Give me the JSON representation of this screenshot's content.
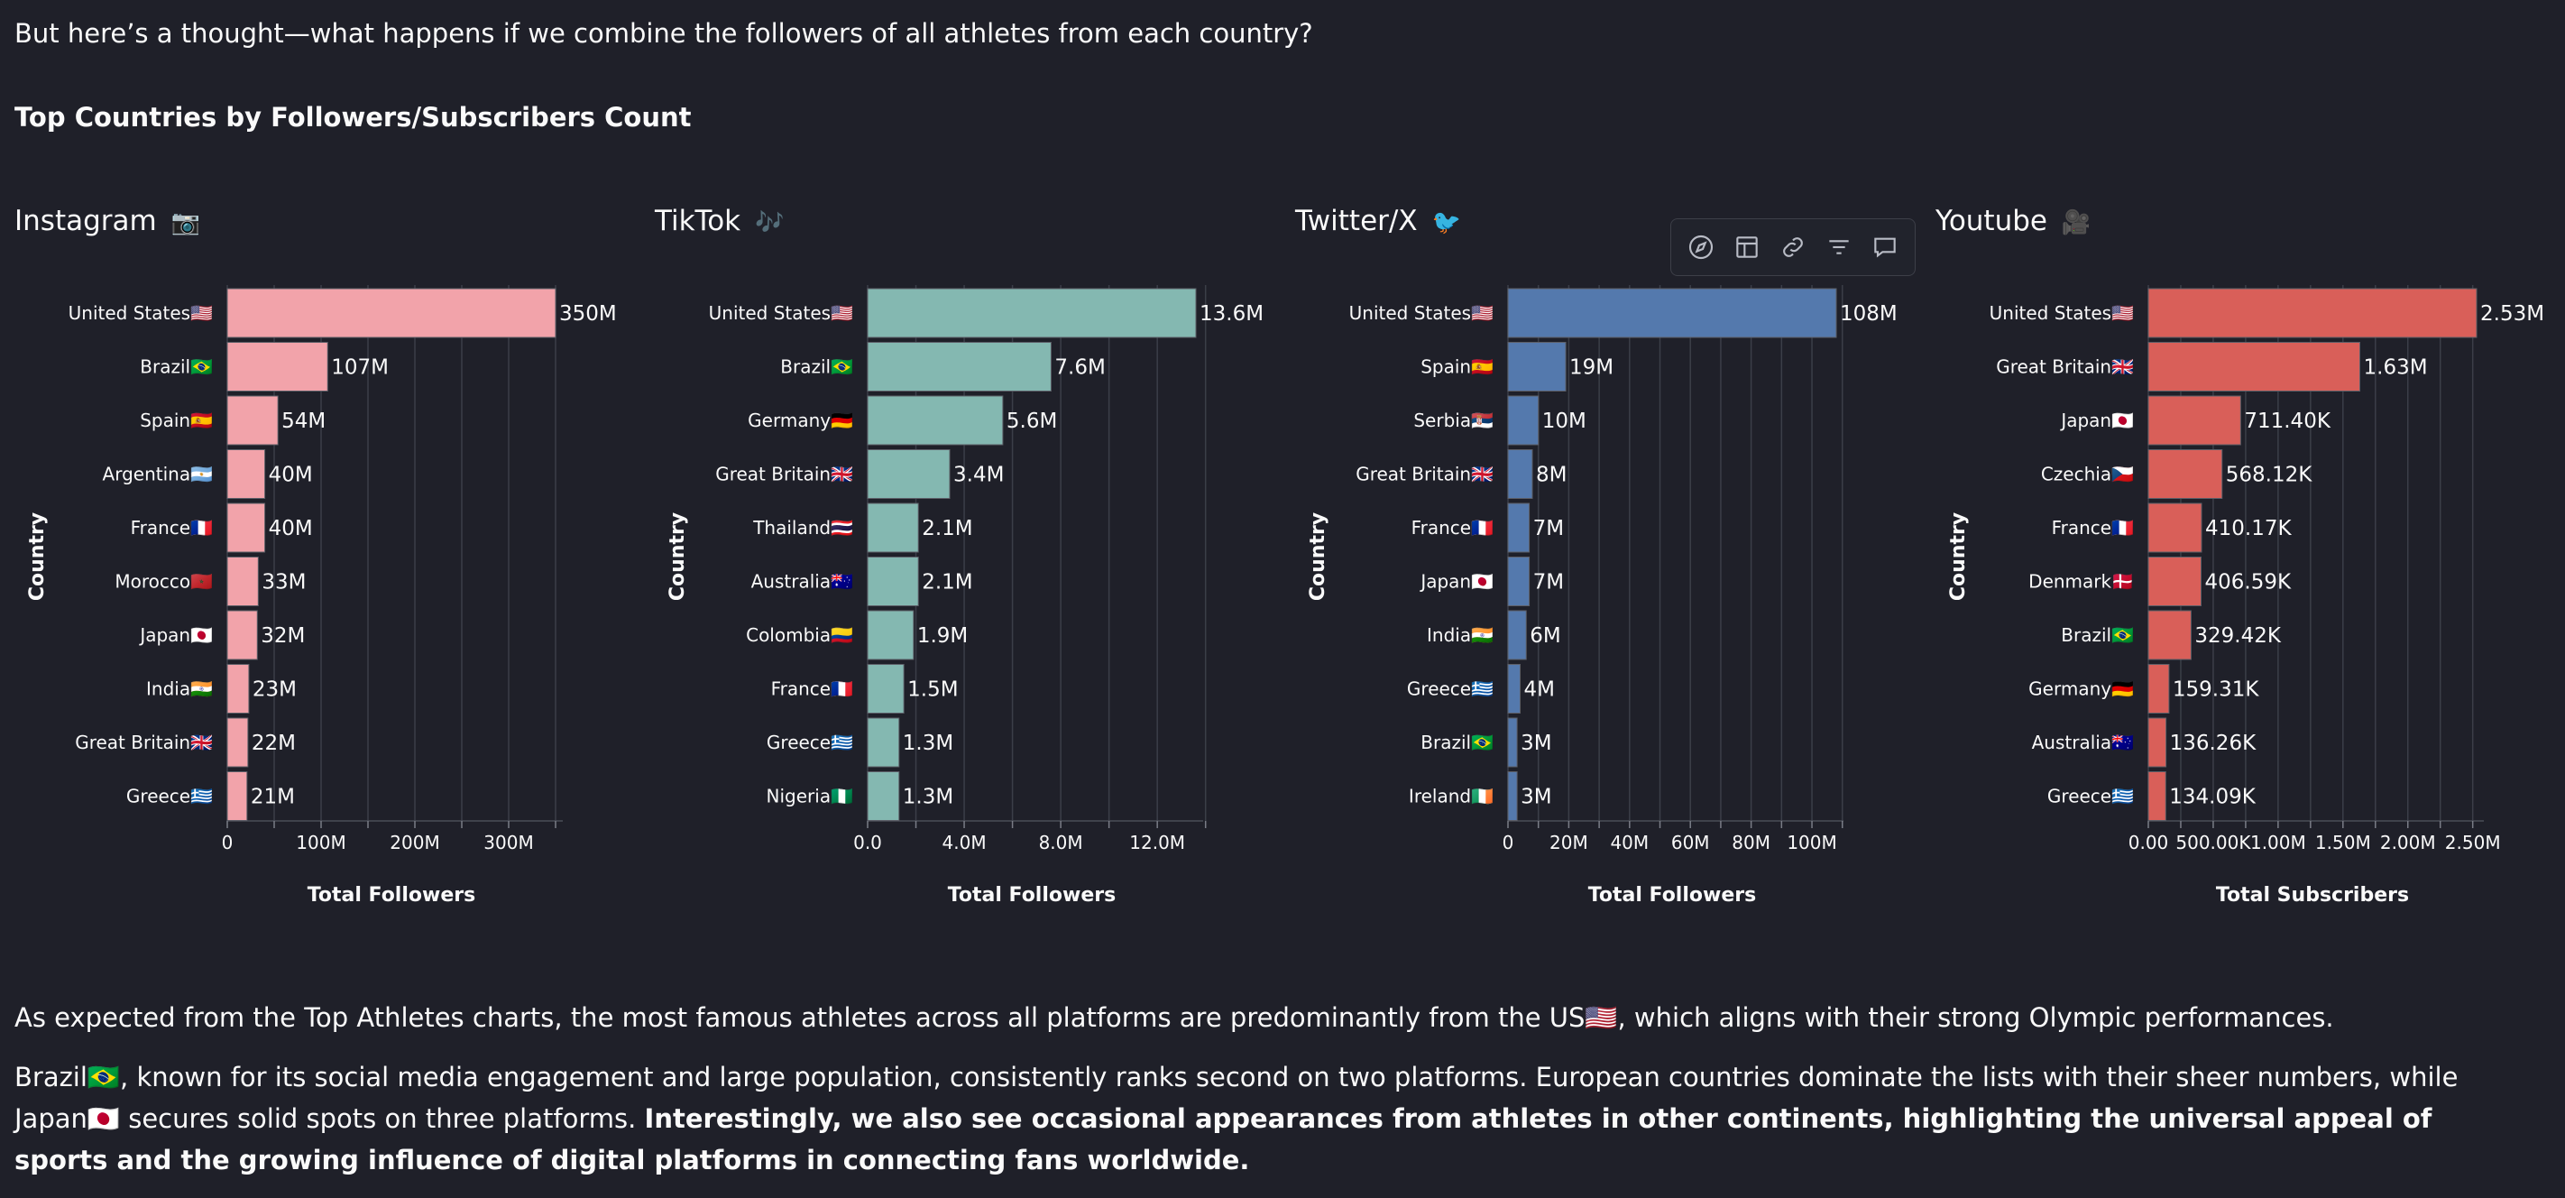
{
  "intro": "But here’s a thought—what happens if we combine the followers of all athletes from each country?",
  "section_title": "Top Countries by Followers/Subscribers Count",
  "panels": [
    {
      "title": "Instagram",
      "emoji": "📷"
    },
    {
      "title": "TikTok",
      "emoji": "🎶"
    },
    {
      "title": "Twitter/X",
      "emoji": "🐦"
    },
    {
      "title": "Youtube",
      "emoji": "🎥"
    }
  ],
  "toolbar": {
    "icons": [
      "compass-icon",
      "table-icon",
      "link-icon",
      "filter-icon",
      "comment-icon"
    ]
  },
  "para1": "As expected from the Top Athletes charts, the most famous athletes across all platforms are predominantly from the US🇺🇸, which aligns with their strong Olympic performances.",
  "para2_regular": "Brazil🇧🇷, known for its social media engagement and large population, consistently ranks second on two platforms. European countries dominate the lists with their sheer numbers, while Japan🇯🇵 secures solid spots on three platforms. ",
  "para2_bold": "Interestingly, we also see occasional appearances from athletes in other continents, highlighting the universal appeal of sports and the growing influence of digital platforms in connecting fans worldwide.",
  "chart_data": [
    {
      "type": "bar",
      "orientation": "horizontal",
      "color": "#f2a3aa",
      "ylabel": "Country",
      "xlabel": "Total Followers",
      "categories": [
        "United States🇺🇸",
        "Brazil🇧🇷",
        "Spain🇪🇸",
        "Argentina🇦🇷",
        "France🇫🇷",
        "Morocco🇲🇦",
        "Japan🇯🇵",
        "India🇮🇳",
        "Great Britain🇬🇧",
        "Greece🇬🇷"
      ],
      "values": [
        350000000,
        107000000,
        54000000,
        40000000,
        40000000,
        33000000,
        32000000,
        23000000,
        22000000,
        21000000
      ],
      "data_labels": [
        "350M",
        "107M",
        "54M",
        "40M",
        "40M",
        "33M",
        "32M",
        "23M",
        "22M",
        "21M"
      ],
      "xlim": [
        0,
        350000000
      ],
      "xticks": [
        0,
        100000000,
        200000000,
        300000000
      ],
      "xtick_labels": [
        "0",
        "100M",
        "200M",
        "300M"
      ],
      "minor_grid": [
        50000000,
        150000000,
        250000000,
        350000000
      ]
    },
    {
      "type": "bar",
      "orientation": "horizontal",
      "color": "#84b8b1",
      "ylabel": "Country",
      "xlabel": "Total Followers",
      "categories": [
        "United States🇺🇸",
        "Brazil🇧🇷",
        "Germany🇩🇪",
        "Great Britain🇬🇧",
        "Thailand🇹🇭",
        "Australia🇦🇺",
        "Colombia🇨🇴",
        "France🇫🇷",
        "Greece🇬🇷",
        "Nigeria🇳🇬"
      ],
      "values": [
        13600000,
        7600000,
        5600000,
        3400000,
        2100000,
        2100000,
        1900000,
        1500000,
        1300000,
        1300000
      ],
      "data_labels": [
        "13.6M",
        "7.6M",
        "5.6M",
        "3.4M",
        "2.1M",
        "2.1M",
        "1.9M",
        "1.5M",
        "1.3M",
        "1.3M"
      ],
      "xlim": [
        0,
        13600000
      ],
      "xticks": [
        0,
        4000000,
        8000000,
        12000000
      ],
      "xtick_labels": [
        "0.0",
        "4.0M",
        "8.0M",
        "12.0M"
      ],
      "minor_grid": [
        2000000,
        6000000,
        10000000,
        14000000
      ]
    },
    {
      "type": "bar",
      "orientation": "horizontal",
      "color": "#5479ad",
      "ylabel": "Country",
      "xlabel": "Total Followers",
      "categories": [
        "United States🇺🇸",
        "Spain🇪🇸",
        "Serbia🇷🇸",
        "Great Britain🇬🇧",
        "France🇫🇷",
        "Japan🇯🇵",
        "India🇮🇳",
        "Greece🇬🇷",
        "Brazil🇧🇷",
        "Ireland🇮🇪"
      ],
      "values": [
        108000000,
        19000000,
        10000000,
        8000000,
        7000000,
        7000000,
        6000000,
        4000000,
        3000000,
        3000000
      ],
      "data_labels": [
        "108M",
        "19M",
        "10M",
        "8M",
        "7M",
        "7M",
        "6M",
        "4M",
        "3M",
        "3M"
      ],
      "xlim": [
        0,
        108000000
      ],
      "xticks": [
        0,
        20000000,
        40000000,
        60000000,
        80000000,
        100000000
      ],
      "xtick_labels": [
        "0",
        "20M",
        "40M",
        "60M",
        "80M",
        "100M"
      ],
      "minor_grid": [
        10000000,
        30000000,
        50000000,
        70000000,
        90000000,
        110000000
      ]
    },
    {
      "type": "bar",
      "orientation": "horizontal",
      "color": "#d95f59",
      "ylabel": "Country",
      "xlabel": "Total Subscribers",
      "categories": [
        "United States🇺🇸",
        "Great Britain🇬🇧",
        "Japan🇯🇵",
        "Czechia🇨🇿",
        "France🇫🇷",
        "Denmark🇩🇰",
        "Brazil🇧🇷",
        "Germany🇩🇪",
        "Australia🇦🇺",
        "Greece🇬🇷"
      ],
      "values": [
        2530000,
        1630000,
        711400,
        568120,
        410170,
        406590,
        329420,
        159310,
        136260,
        134090
      ],
      "data_labels": [
        "2.53M",
        "1.63M",
        "711.40K",
        "568.12K",
        "410.17K",
        "406.59K",
        "329.42K",
        "159.31K",
        "136.26K",
        "134.09K"
      ],
      "xlim": [
        0,
        2530000
      ],
      "xticks": [
        0,
        500000,
        1000000,
        1500000,
        2000000,
        2500000
      ],
      "xtick_labels": [
        "0.00",
        "500.00K",
        "1.00M",
        "1.50M",
        "2.00M",
        "2.50M"
      ],
      "minor_grid": [
        250000,
        750000,
        1250000,
        1750000,
        2250000,
        2750000
      ]
    }
  ]
}
